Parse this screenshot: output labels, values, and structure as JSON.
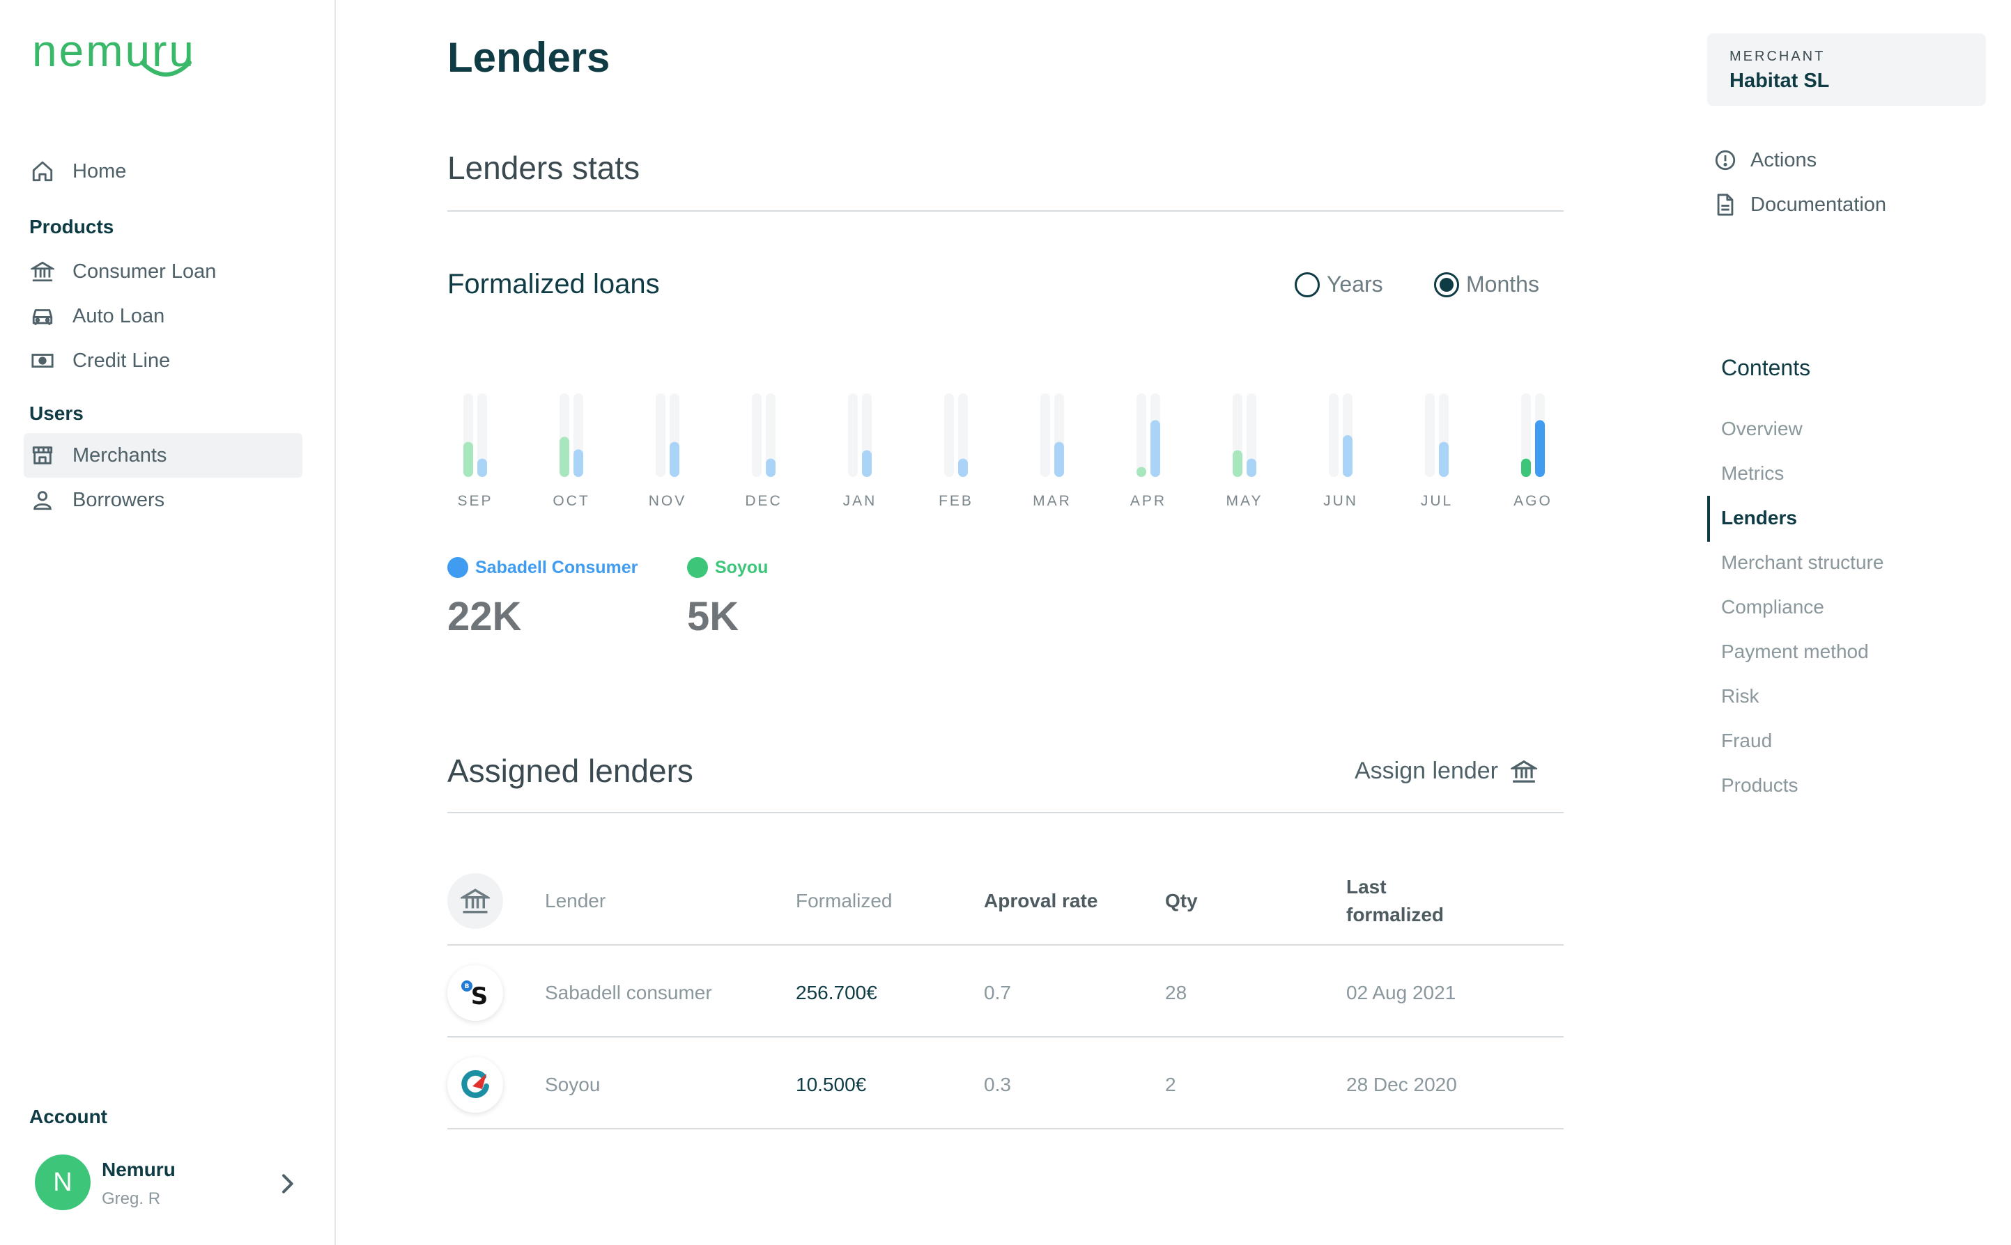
{
  "brand": {
    "logo_text": "nemuru",
    "accent": "#39b86a",
    "primary": "#0f3b45"
  },
  "sidebar": {
    "home": {
      "label": "Home",
      "icon": "home-icon"
    },
    "products_heading": "Products",
    "products": [
      {
        "label": "Consumer Loan",
        "icon": "bank-icon"
      },
      {
        "label": "Auto Loan",
        "icon": "car-icon"
      },
      {
        "label": "Credit Line",
        "icon": "cash-icon"
      }
    ],
    "users_heading": "Users",
    "users": [
      {
        "label": "Merchants",
        "icon": "store-icon",
        "active": true
      },
      {
        "label": "Borrowers",
        "icon": "user-icon"
      }
    ],
    "account_heading": "Account",
    "account": {
      "initial": "N",
      "name": "Nemuru",
      "user": "Greg. R"
    }
  },
  "main": {
    "title": "Lenders",
    "stats_title": "Lenders stats",
    "formalized_title": "Formalized loans",
    "period": {
      "years_label": "Years",
      "months_label": "Months",
      "selected": "Months"
    },
    "assigned_title": "Assigned lenders",
    "assign_button": "Assign lender"
  },
  "chart_data": {
    "type": "bar",
    "categories": [
      "SEP",
      "OCT",
      "NOV",
      "DEC",
      "JAN",
      "FEB",
      "MAR",
      "APR",
      "MAY",
      "JUN",
      "JUL",
      "AGO"
    ],
    "ylim": [
      0,
      1
    ],
    "series": [
      {
        "name": "Soyou",
        "color": "#a8e6bd",
        "highlight_color": "#3dc57a",
        "values": [
          0.42,
          0.48,
          0,
          0,
          0,
          0,
          0,
          0.12,
          0.32,
          0,
          0,
          0.22
        ]
      },
      {
        "name": "Sabadell Consumer",
        "color": "#a9d4f7",
        "highlight_color": "#3f9cf0",
        "values": [
          0.22,
          0.33,
          0.42,
          0.22,
          0.32,
          0.22,
          0.42,
          0.68,
          0.22,
          0.5,
          0.42,
          0.68
        ]
      }
    ],
    "highlight_index": 11,
    "legend": [
      {
        "name": "Sabadell Consumer",
        "total": "22K",
        "color": "#3f9cf0"
      },
      {
        "name": "Soyou",
        "total": "5K",
        "color": "#3dc57a"
      }
    ]
  },
  "table": {
    "headers": {
      "lender": "Lender",
      "formalized": "Formalized",
      "approval": "Aproval rate",
      "qty": "Qty",
      "last_line1": "Last",
      "last_line2": "formalized"
    },
    "rows": [
      {
        "logo": "sabadell-logo-icon",
        "logo_text": "S",
        "lender": "Sabadell consumer",
        "formalized": "256.700€",
        "approval": "0.7",
        "qty": "28",
        "last": "02 Aug 2021"
      },
      {
        "logo": "soyou-logo-icon",
        "lender": "Soyou",
        "formalized": "10.500€",
        "approval": "0.3",
        "qty": "2",
        "last": "28 Dec 2020"
      }
    ]
  },
  "right": {
    "merchant_label": "MERCHANT",
    "merchant_name": "Habitat SL",
    "links": [
      {
        "label": "Actions",
        "icon": "info-circle-icon"
      },
      {
        "label": "Documentation",
        "icon": "document-icon"
      }
    ],
    "contents_title": "Contents",
    "toc": [
      "Overview",
      "Metrics",
      "Lenders",
      "Merchant structure",
      "Compliance",
      "Payment method",
      "Risk",
      "Fraud",
      "Products"
    ],
    "toc_active": "Lenders"
  }
}
